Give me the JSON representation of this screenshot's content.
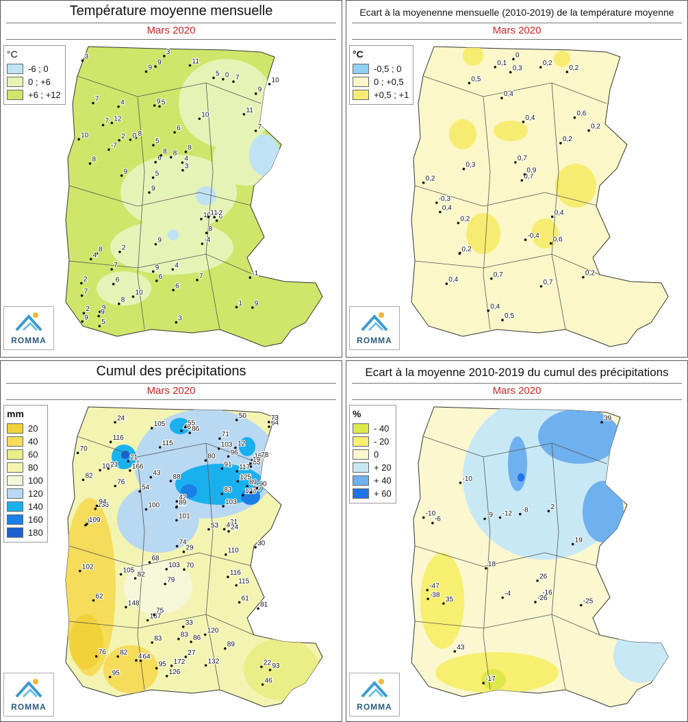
{
  "panels": [
    {
      "title": "Température moyenne mensuelle",
      "subtitle": "Mars 2020",
      "legend_unit": "°C",
      "legend": [
        {
          "label": "-6 ; 0",
          "color": "#bfe3f5"
        },
        {
          "label": "0 ; +6",
          "color": "#e6f3b6"
        },
        {
          "label": "+6 ; +12",
          "color": "#cfe66a"
        }
      ],
      "labels": [
        "9",
        "8",
        "9",
        "9",
        "10",
        "9",
        "9",
        "6",
        "8",
        "8",
        "7",
        "6",
        "5",
        "8",
        "6",
        "7",
        "9",
        "10",
        "7",
        "5",
        "9",
        "6",
        "4",
        "5",
        "2",
        "1",
        "-1",
        "-2",
        "3",
        "0",
        "-7",
        "-4",
        "8",
        "4",
        "2",
        "6",
        "3",
        "4",
        "11",
        "10",
        "8",
        "7",
        "7",
        "5",
        "9",
        "4",
        "7",
        "3",
        "9",
        "10",
        "12",
        "0",
        "9",
        "11",
        "9",
        "8",
        "9",
        "10",
        "11",
        "2",
        "2",
        "3",
        "7",
        "5",
        "6",
        "8"
      ],
      "logo": "ROMMA"
    },
    {
      "title": "Ecart à la moyenenne mensuelle (2010-2019) de la température moyenne",
      "subtitle": "Mars 2020",
      "legend_unit": "°C",
      "legend": [
        {
          "label": "-0,5 ; 0",
          "color": "#8fd0f5"
        },
        {
          "label": "0 ; +0,5",
          "color": "#fbf7c8"
        },
        {
          "label": "+0,5 ; +1",
          "color": "#f7ec72"
        }
      ],
      "labels": [
        "0,4",
        "0,2",
        "0,5",
        "0,6",
        "-0,4",
        "0,3",
        "0,2",
        "0,2",
        "0,2",
        "0,2",
        "-0,3",
        "0",
        "0,6",
        "0,7",
        "0,5",
        "0,1",
        "0,2",
        "0,2",
        "0",
        "0,4",
        "0,7",
        "0,3",
        "0,4",
        "0,9",
        "0,7",
        "0,7",
        "0,4",
        "0,2",
        "0,4",
        "0,4"
      ],
      "logo": "ROMMA"
    },
    {
      "title": "Cumul des précipitations",
      "subtitle": "Mars 2020",
      "legend_unit": "mm",
      "legend": [
        {
          "label": "20",
          "color": "#f2d23b"
        },
        {
          "label": "40",
          "color": "#f5dc5a"
        },
        {
          "label": "60",
          "color": "#e9ee86"
        },
        {
          "label": "80",
          "color": "#f3f4b2"
        },
        {
          "label": "100",
          "color": "#f6f7d8"
        },
        {
          "label": "120",
          "color": "#b9d8f2"
        },
        {
          "label": "140",
          "color": "#1ab0ee"
        },
        {
          "label": "160",
          "color": "#1a7fe6"
        },
        {
          "label": "180",
          "color": "#1c5fd0"
        }
      ],
      "labels": [
        "167",
        "75",
        "86",
        "95",
        "115",
        "42",
        "64",
        "169",
        "86",
        "136",
        "107",
        "91",
        "83",
        "103",
        "94",
        "132",
        "105",
        "102",
        "89",
        "116",
        "125",
        "29",
        "95",
        "61",
        "148",
        "172",
        "43",
        "54",
        "64",
        "117",
        "83",
        "166",
        "126",
        "31",
        "80",
        "120",
        "115",
        "12",
        "71",
        "101",
        "109",
        "70",
        "24",
        "103",
        "120",
        "82",
        "76",
        "27",
        "50",
        "110",
        "88",
        "70",
        "44",
        "46",
        "42",
        "82",
        "116",
        "68",
        "89",
        "50",
        "53",
        "73",
        "96",
        "83",
        "83",
        "30",
        "21",
        "89",
        "90",
        "78",
        "19",
        "33",
        "74",
        "100",
        "105",
        "62",
        "21",
        "24",
        "46",
        "82",
        "55",
        "103",
        "83",
        "76",
        "22",
        "29",
        "93",
        "81",
        "79"
      ],
      "logo": "ROMMA"
    },
    {
      "title": "Ecart à la moyenne 2010-2019 du cumul des précipitations",
      "subtitle": "Mars 2020",
      "legend_unit": "%",
      "legend": [
        {
          "label": "- 40",
          "color": "#dde84a"
        },
        {
          "label": "- 20",
          "color": "#f7ef6f"
        },
        {
          "label": "0",
          "color": "#fbf7cf"
        },
        {
          "label": "+ 20",
          "color": "#c8e8f6"
        },
        {
          "label": "+ 40",
          "color": "#6fb0ee"
        },
        {
          "label": "+ 60",
          "color": "#1f73e8"
        }
      ],
      "labels": [
        "-16",
        "-6",
        "39",
        "-26",
        "18",
        "-12",
        "19",
        "26",
        "-9",
        "-8",
        "43",
        "-10",
        "35",
        "-4",
        "-25",
        "2",
        "-38",
        "-17",
        "-10",
        "-47"
      ],
      "logo": "ROMMA"
    }
  ]
}
